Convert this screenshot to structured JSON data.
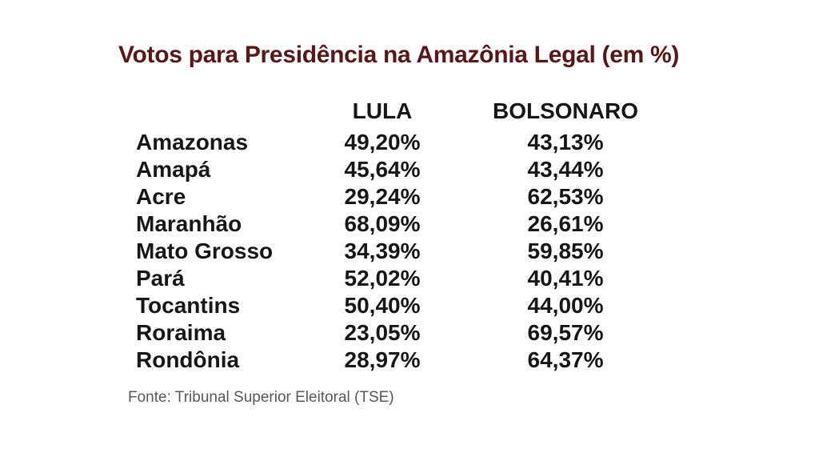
{
  "title": {
    "text": "Votos para Presidência na Amazônia Legal (em %)",
    "color": "#5c1616"
  },
  "table": {
    "headers": {
      "state": "",
      "lula": "LULA",
      "bolsonaro": "BOLSONARO"
    },
    "rows": [
      {
        "state": "Amazonas",
        "lula": "49,20%",
        "bolsonaro": "43,13%"
      },
      {
        "state": "Amapá",
        "lula": "45,64%",
        "bolsonaro": "43,44%"
      },
      {
        "state": "Acre",
        "lula": "29,24%",
        "bolsonaro": "62,53%"
      },
      {
        "state": "Maranhão",
        "lula": "68,09%",
        "bolsonaro": "26,61%"
      },
      {
        "state": "Mato Grosso",
        "lula": "34,39%",
        "bolsonaro": "59,85%"
      },
      {
        "state": "Pará",
        "lula": "52,02%",
        "bolsonaro": "40,41%"
      },
      {
        "state": "Tocantins",
        "lula": "50,40%",
        "bolsonaro": "44,00%"
      },
      {
        "state": "Roraima",
        "lula": "23,05%",
        "bolsonaro": "69,57%"
      },
      {
        "state": "Rondônia",
        "lula": "28,97%",
        "bolsonaro": "64,37%"
      }
    ]
  },
  "footer": {
    "source": "Fonte: Tribunal Superior Eleitoral (TSE)"
  },
  "chart_data": {
    "type": "table",
    "title": "Votos para Presidência na Amazônia Legal (em %)",
    "columns": [
      "",
      "LULA",
      "BOLSONARO"
    ],
    "categories": [
      "Amazonas",
      "Amapá",
      "Acre",
      "Maranhão",
      "Mato Grosso",
      "Pará",
      "Tocantins",
      "Roraima",
      "Rondônia"
    ],
    "series": [
      {
        "name": "LULA",
        "values": [
          49.2,
          45.64,
          29.24,
          68.09,
          34.39,
          52.02,
          50.4,
          23.05,
          28.97
        ]
      },
      {
        "name": "BOLSONARO",
        "values": [
          43.13,
          43.44,
          62.53,
          26.61,
          59.85,
          40.41,
          44.0,
          69.57,
          64.37
        ]
      }
    ],
    "unit": "%",
    "source": "Fonte: Tribunal Superior Eleitoral (TSE)",
    "layout": {
      "grid": false,
      "legend_position": "column-headers"
    }
  }
}
